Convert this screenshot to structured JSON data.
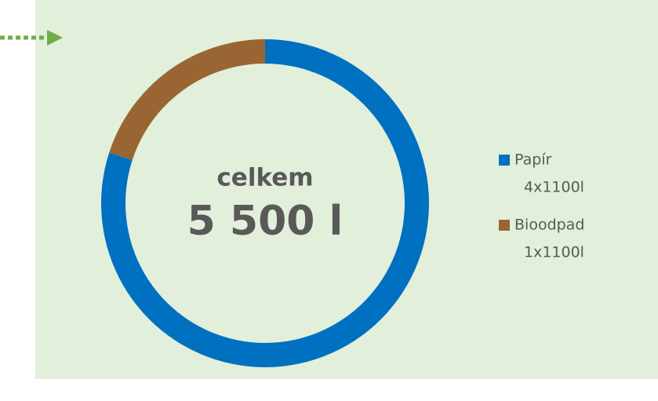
{
  "chart_data": {
    "type": "donut",
    "categories": [
      "Papír",
      "Bioodpad"
    ],
    "values": [
      4400,
      1100
    ],
    "value_labels": [
      "4x1100l",
      "1x1100l"
    ],
    "colors": [
      "#0070c0",
      "#996633"
    ],
    "center_label": "celkem",
    "total_label": "5 500 l",
    "legend": "right"
  }
}
